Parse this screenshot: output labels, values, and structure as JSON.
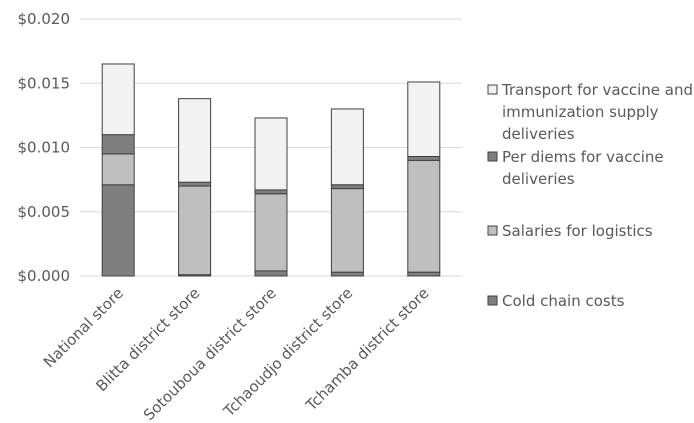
{
  "chart_data": {
    "type": "bar",
    "stacked": true,
    "title": "",
    "xlabel": "",
    "ylabel": "",
    "ylim": [
      0,
      0.02
    ],
    "yticks": [
      {
        "value": 0,
        "label": "$0.000"
      },
      {
        "value": 0.005,
        "label": "$0.005"
      },
      {
        "value": 0.01,
        "label": "$0.010"
      },
      {
        "value": 0.015,
        "label": "$0.015"
      },
      {
        "value": 0.02,
        "label": "$0.020"
      }
    ],
    "grid": true,
    "legend_position": "right",
    "categories": [
      "National store",
      "Blitta district store",
      "Sotouboua district store",
      "Tchaoudjo district store",
      "Tchamba district store"
    ],
    "series": [
      {
        "name": "Cold chain costs",
        "color": "#7f7f7f",
        "values": [
          0.0071,
          0.0001,
          0.0004,
          0.0003,
          0.0003
        ]
      },
      {
        "name": "Salaries for logistics",
        "color": "#bfbfbf",
        "values": [
          0.0024,
          0.0069,
          0.006,
          0.0065,
          0.0087
        ]
      },
      {
        "name": "Per diems for vaccine deliveries",
        "color": "#7f7f7f",
        "values": [
          0.0015,
          0.0003,
          0.0003,
          0.0003,
          0.0003
        ]
      },
      {
        "name": "Transport for vaccine and immunization supply deliveries",
        "color": "#f2f2f2",
        "values": [
          0.0055,
          0.0065,
          0.0056,
          0.0059,
          0.0058
        ]
      }
    ],
    "legend": [
      {
        "series": 3,
        "lines": [
          "Transport for vaccine and",
          "immunization supply",
          "deliveries"
        ]
      },
      {
        "series": 2,
        "lines": [
          "Per diems for vaccine",
          "deliveries"
        ]
      },
      {
        "series": 1,
        "lines": [
          "Salaries for logistics"
        ]
      },
      {
        "series": 0,
        "lines": [
          "Cold chain costs"
        ]
      }
    ]
  }
}
